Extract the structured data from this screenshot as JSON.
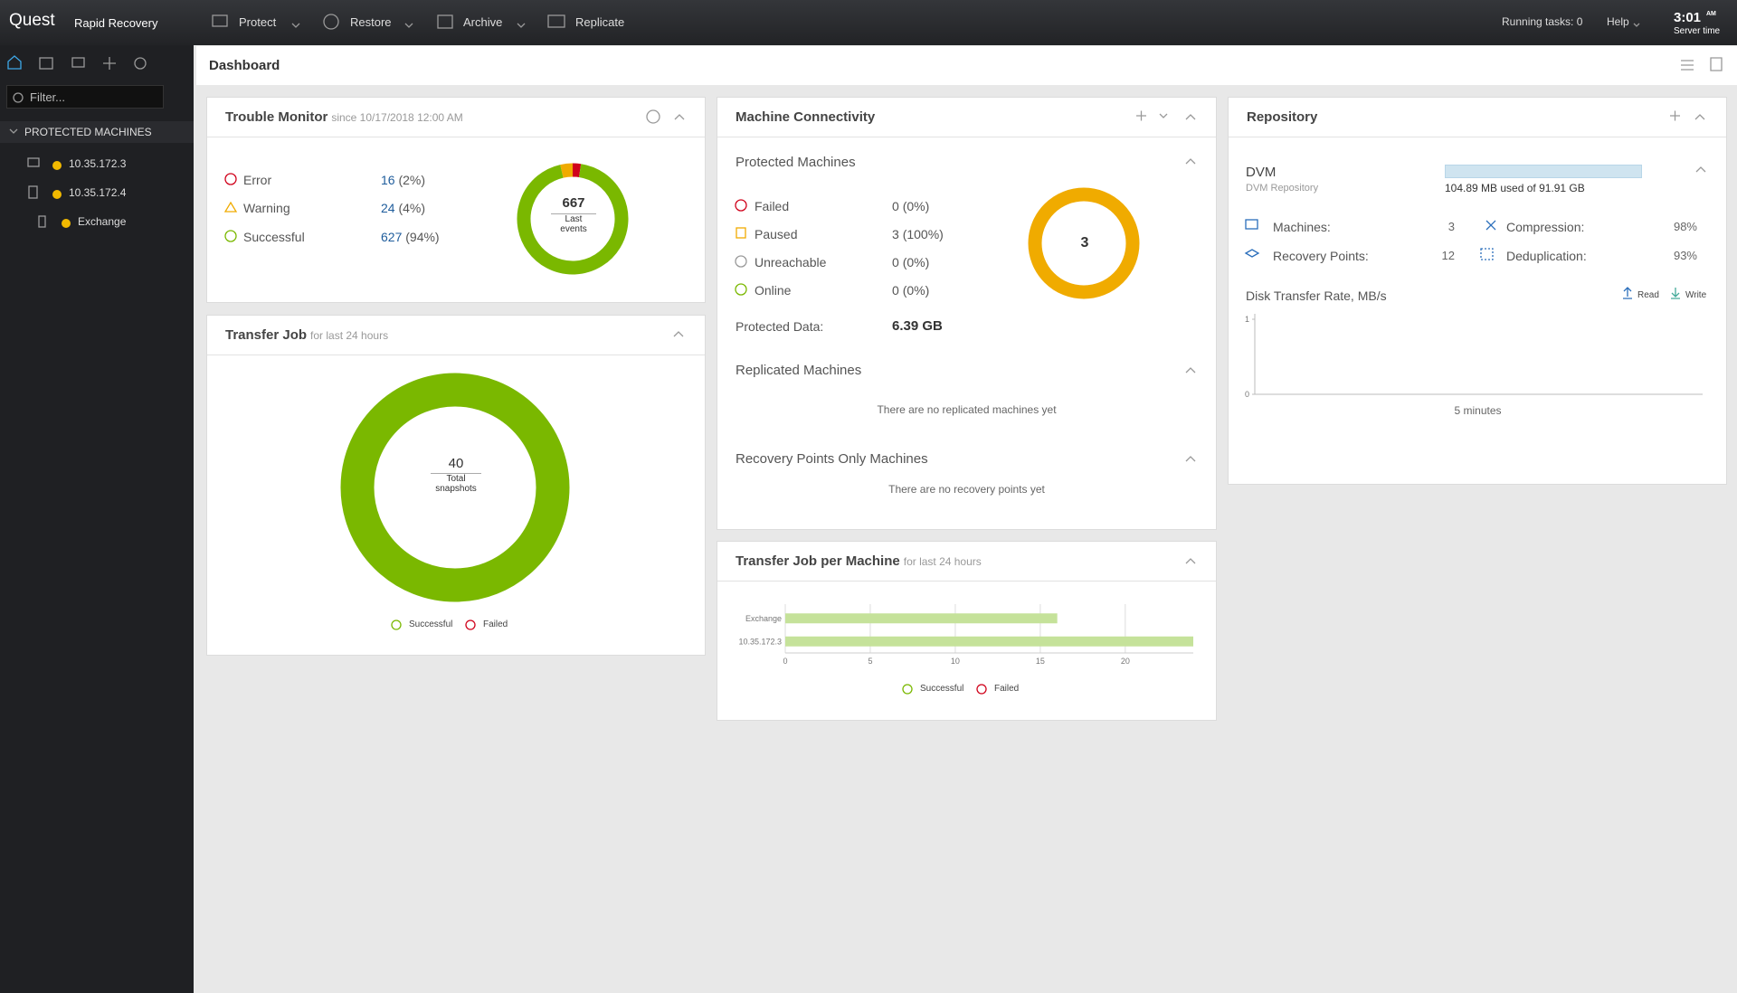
{
  "topbar": {
    "brand": "Quest",
    "product": "Rapid Recovery",
    "menu": [
      "Protect",
      "Restore",
      "Archive",
      "Replicate"
    ],
    "running_tasks": "Running tasks: 0",
    "help": "Help",
    "time": "3:01",
    "ampm": "AM",
    "server_time": "Server time"
  },
  "sidebar": {
    "filter_placeholder": "Filter...",
    "section": "PROTECTED MACHINES",
    "machines": [
      "10.35.172.3",
      "10.35.172.4",
      "Exchange"
    ]
  },
  "page_title": "Dashboard",
  "trouble_monitor": {
    "title": "Trouble Monitor",
    "subtitle": "since 10/17/2018 12:00 AM",
    "rows": [
      {
        "label": "Error",
        "value": 16,
        "pct": "(2%)",
        "color": "#d0021b"
      },
      {
        "label": "Warning",
        "value": 24,
        "pct": "(4%)",
        "color": "#f0ab00"
      },
      {
        "label": "Successful",
        "value": 627,
        "pct": "(94%)",
        "color": "#7ab800"
      }
    ],
    "total": 667,
    "total_label": "Last events"
  },
  "transfer_job": {
    "title": "Transfer Job",
    "subtitle": "for last 24 hours",
    "total": 40,
    "total_label": "Total snapshots",
    "color": "#7ab800",
    "legend": [
      "Successful",
      "Failed"
    ]
  },
  "machine_connectivity": {
    "title": "Machine Connectivity",
    "protected_title": "Protected Machines",
    "rows": [
      {
        "label": "Failed",
        "count": 0,
        "pct": "(0%)",
        "color": "#d0021b"
      },
      {
        "label": "Paused",
        "count": 3,
        "pct": "(100%)",
        "color": "#f0ab00"
      },
      {
        "label": "Unreachable",
        "count": 0,
        "pct": "(0%)",
        "color": "#999999"
      },
      {
        "label": "Online",
        "count": 0,
        "pct": "(0%)",
        "color": "#7ab800"
      }
    ],
    "total": 3,
    "protected_data_label": "Protected Data:",
    "protected_data": "6.39 GB",
    "replicated_title": "Replicated Machines",
    "replicated_empty": "There are no replicated machines yet",
    "rp_only_title": "Recovery Points Only Machines",
    "rp_only_empty": "There are no recovery points yet"
  },
  "transfer_job_per_machine": {
    "title": "Transfer Job per Machine",
    "subtitle": "for last 24 hours",
    "chart_data": {
      "type": "bar",
      "categories": [
        "Exchange",
        "10.35.172.3"
      ],
      "values": [
        16,
        24
      ],
      "color": "#c5e29a",
      "xlim": [
        0,
        24
      ],
      "xticks": [
        0,
        5,
        10,
        15,
        20
      ],
      "grid": true
    },
    "legend": [
      "Successful",
      "Failed"
    ]
  },
  "repository": {
    "title": "Repository",
    "name": "DVM",
    "subtitle": "DVM Repository",
    "usage": "104.89 MB used of 91.91 GB",
    "stats": [
      {
        "label": "Machines:",
        "value": "3"
      },
      {
        "label": "Recovery Points:",
        "value": "12"
      },
      {
        "label": "Compression:",
        "value": "98%"
      },
      {
        "label": "Deduplication:",
        "value": "93%"
      }
    ],
    "disk_title": "Disk Transfer Rate, MB/s",
    "disk_chart": {
      "type": "line",
      "ylim": [
        0,
        1
      ],
      "yticks": [
        0,
        1
      ],
      "xlabel": "5 minutes"
    },
    "legend": [
      "Read",
      "Write"
    ]
  }
}
